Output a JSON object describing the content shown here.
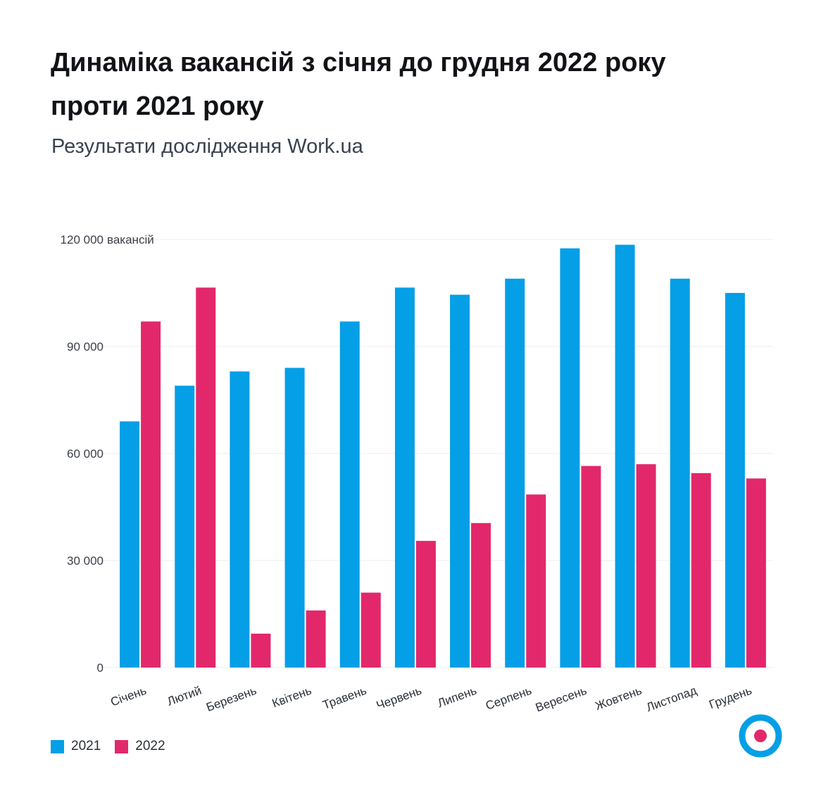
{
  "header": {
    "title": "Динаміка вакансій з січня до грудня 2022 року проти 2021 року",
    "subtitle": "Результати дослідження Work.ua"
  },
  "legend": [
    {
      "label": "2021",
      "color": "#049fe6"
    },
    {
      "label": "2022",
      "color": "#e2286a"
    }
  ],
  "colors": {
    "series_2021": "#049fe6",
    "series_2022": "#e2286a",
    "grid": "#ececf0",
    "logo_ring": "#049fe6",
    "logo_dot": "#e2286a"
  },
  "logo": {
    "icon": "work-ua-logo-icon"
  },
  "chart_data": {
    "type": "bar",
    "categories": [
      "Січень",
      "Лютий",
      "Березень",
      "Квітень",
      "Травень",
      "Червень",
      "Липень",
      "Серпень",
      "Вересень",
      "Жовтень",
      "Листопад",
      "Грудень"
    ],
    "series": [
      {
        "name": "2021",
        "color": "#049fe6",
        "values": [
          69000,
          79000,
          83000,
          84000,
          97000,
          106500,
          104500,
          109000,
          117500,
          118500,
          109000,
          105000
        ]
      },
      {
        "name": "2022",
        "color": "#e2286a",
        "values": [
          97000,
          106500,
          9500,
          16000,
          21000,
          35500,
          40500,
          48500,
          56500,
          57000,
          54500,
          53000
        ]
      }
    ],
    "ylim": [
      0,
      120000
    ],
    "yticks": [
      {
        "value": 0,
        "label": "0"
      },
      {
        "value": 30000,
        "label": "30 000"
      },
      {
        "value": 60000,
        "label": "60 000"
      },
      {
        "value": 90000,
        "label": "90 000"
      },
      {
        "value": 120000,
        "label": "120 000"
      }
    ],
    "ylabel": "вакансій",
    "grid": true,
    "legend_position": "bottom-left"
  }
}
